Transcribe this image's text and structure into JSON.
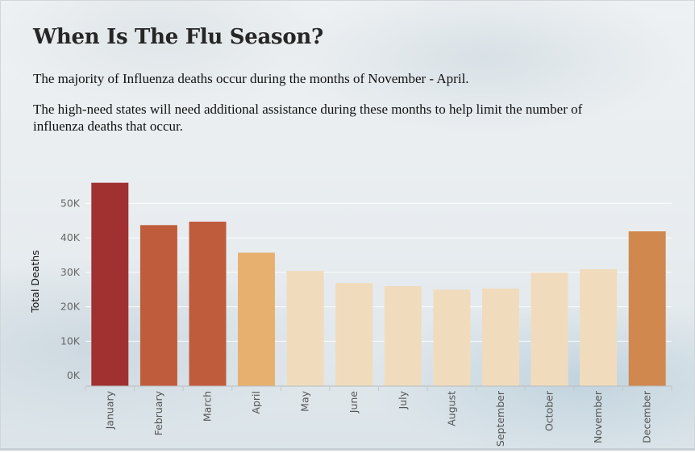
{
  "header": {
    "title": "When Is The Flu Season?",
    "paragraph_1": "The majority of Influenza deaths occur during the months of November - April.",
    "paragraph_2": "The high-need states will need additional assistance during these months to help limit the number of influenza deaths that occur."
  },
  "chart_data": {
    "type": "bar",
    "title": "",
    "xlabel": "",
    "ylabel": "Total Deaths",
    "categories": [
      "January",
      "February",
      "March",
      "April",
      "May",
      "June",
      "July",
      "August",
      "September",
      "October",
      "November",
      "December"
    ],
    "values": [
      56000,
      43700,
      44700,
      35700,
      30400,
      26900,
      26000,
      25000,
      25300,
      29900,
      30900,
      41900
    ],
    "ylim": [
      -3000,
      57800
    ],
    "yticks": [
      0,
      10000,
      20000,
      30000,
      40000,
      50000
    ],
    "ytick_labels": [
      "0K",
      "10K",
      "20K",
      "30K",
      "40K",
      "50K"
    ],
    "grid": true,
    "colors": [
      "#a13131",
      "#bf5c3b",
      "#bf5c3b",
      "#e8b06f",
      "#f0dcbd",
      "#f0dcbd",
      "#f0dcbd",
      "#f0dcbd",
      "#f0dcbd",
      "#f0dcbd",
      "#f0dcbd",
      "#d1884f"
    ]
  }
}
